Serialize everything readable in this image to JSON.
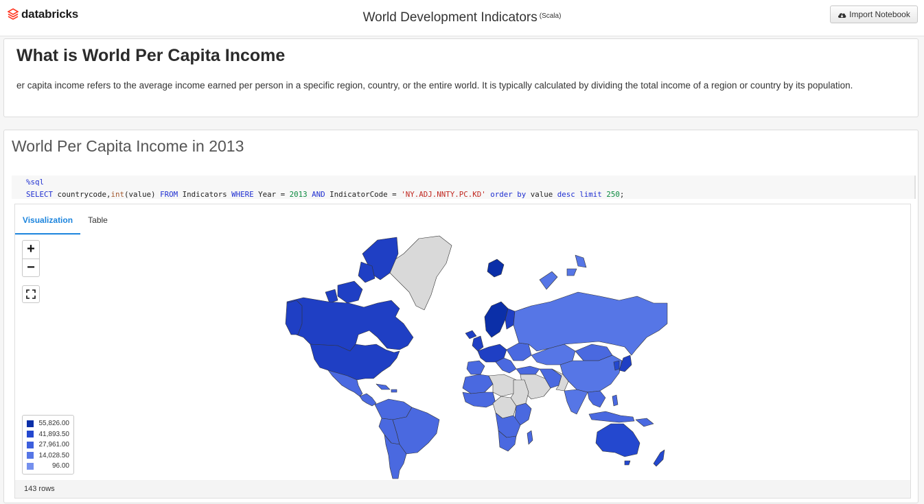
{
  "header": {
    "logo_text": "databricks",
    "title": "World Development Indicators",
    "language": "(Scala)",
    "import_label": "Import Notebook"
  },
  "markdown_cell": {
    "title": "What is World Per Capita Income",
    "body": "er capita income refers to the average income earned per person in a specific region, country, or the entire world. It is typically calculated by dividing the total income of a region or country by its population."
  },
  "sql_cell": {
    "title": "World Per Capita Income in 2013",
    "code_line1": "%sql",
    "code_line2": {
      "t1": "SELECT",
      "t2": " countrycode,",
      "t3": "int",
      "t4": "(value) ",
      "t5": "FROM",
      "t6": " Indicators ",
      "t7": "WHERE",
      "t8": " Year = ",
      "t9": "2013",
      "t10": " ",
      "t11": "AND",
      "t12": " IndicatorCode = ",
      "t13": "'NY.ADJ.NNTY.PC.KD'",
      "t14": " ",
      "t15": "order by",
      "t16": " value ",
      "t17": "desc",
      "t18": " ",
      "t19": "limit",
      "t20": " ",
      "t21": "250",
      "t22": ";"
    },
    "tabs": [
      "Visualization",
      "Table"
    ],
    "active_tab": "Visualization",
    "zoom_in": "+",
    "zoom_out": "−",
    "legend": [
      {
        "value": "55,826.00",
        "color": "#0b2fa8"
      },
      {
        "value": "41,893.50",
        "color": "#2448cf"
      },
      {
        "value": "27,961.00",
        "color": "#3d5fdd"
      },
      {
        "value": "14,028.50",
        "color": "#5676e6"
      },
      {
        "value": "96.00",
        "color": "#7590ee"
      }
    ],
    "no_data_color": "#d9d9d9",
    "rows_text": "143 rows"
  }
}
